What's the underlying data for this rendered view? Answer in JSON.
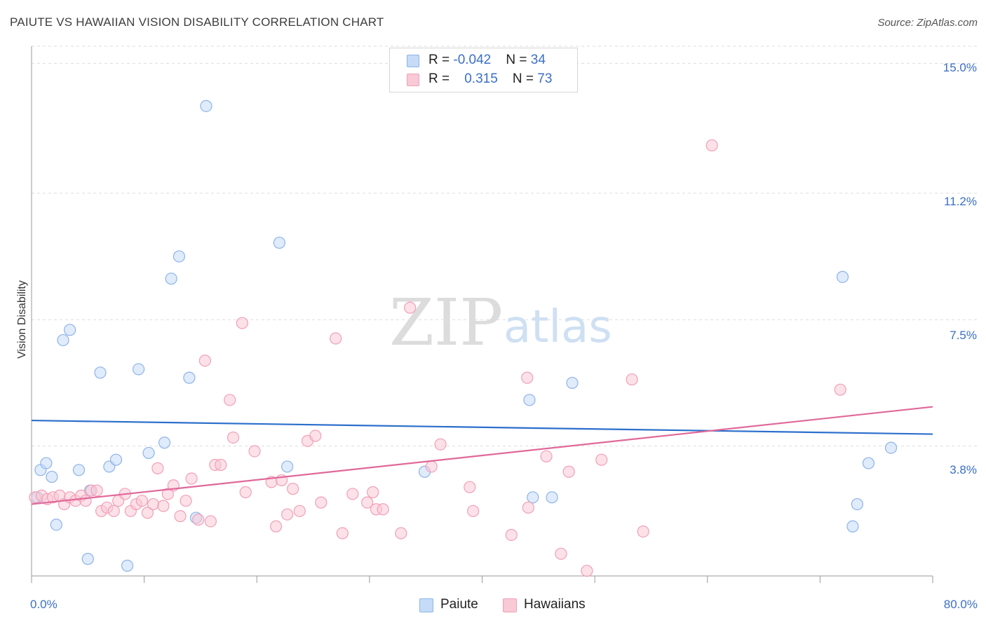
{
  "chart_data": {
    "type": "scatter",
    "title": "PAIUTE VS HAWAIIAN VISION DISABILITY CORRELATION CHART",
    "source": "Source: ZipAtlas.com",
    "watermark": "ZIPatlas",
    "xlabel": "",
    "ylabel": "Vision Disability",
    "xlim": [
      0,
      80
    ],
    "ylim": [
      0,
      15.5
    ],
    "x_tick_labels": [
      "0.0%",
      "80.0%"
    ],
    "y_ticks": [
      {
        "value": 15.0,
        "label": "15.0%"
      },
      {
        "value": 11.2,
        "label": "11.2%"
      },
      {
        "value": 7.5,
        "label": "7.5%"
      },
      {
        "value": 3.8,
        "label": "3.8%"
      }
    ],
    "series": [
      {
        "name": "Paiute",
        "color": "#8db4e8",
        "fill": "#c6dbf7",
        "line_color": "#2c6fcc",
        "r": "-0.042",
        "n": "34",
        "trend": {
          "x0": 0,
          "y0": 4.55,
          "x1": 80,
          "y1": 4.15
        },
        "points": [
          {
            "x": 0.5,
            "y": 2.3
          },
          {
            "x": 0.8,
            "y": 3.1
          },
          {
            "x": 1.3,
            "y": 3.3
          },
          {
            "x": 1.8,
            "y": 2.9
          },
          {
            "x": 2.2,
            "y": 1.5
          },
          {
            "x": 2.8,
            "y": 6.9
          },
          {
            "x": 3.4,
            "y": 7.2
          },
          {
            "x": 4.2,
            "y": 3.1
          },
          {
            "x": 5.2,
            "y": 2.5
          },
          {
            "x": 6.1,
            "y": 5.95
          },
          {
            "x": 6.9,
            "y": 3.2
          },
          {
            "x": 7.5,
            "y": 3.4
          },
          {
            "x": 9.5,
            "y": 6.05
          },
          {
            "x": 10.4,
            "y": 3.6
          },
          {
            "x": 11.8,
            "y": 3.9
          },
          {
            "x": 12.4,
            "y": 8.7
          },
          {
            "x": 13.1,
            "y": 9.35
          },
          {
            "x": 14.0,
            "y": 5.8
          },
          {
            "x": 14.6,
            "y": 1.7
          },
          {
            "x": 15.5,
            "y": 13.75
          },
          {
            "x": 22.0,
            "y": 9.75
          },
          {
            "x": 22.7,
            "y": 3.2
          },
          {
            "x": 34.9,
            "y": 3.05
          },
          {
            "x": 44.2,
            "y": 5.15
          },
          {
            "x": 44.5,
            "y": 2.3
          },
          {
            "x": 46.2,
            "y": 2.3
          },
          {
            "x": 48.0,
            "y": 5.65
          },
          {
            "x": 72.0,
            "y": 8.75
          },
          {
            "x": 73.3,
            "y": 2.1
          },
          {
            "x": 74.3,
            "y": 3.3
          },
          {
            "x": 76.3,
            "y": 3.75
          },
          {
            "x": 72.9,
            "y": 1.45
          },
          {
            "x": 5.0,
            "y": 0.5
          },
          {
            "x": 8.5,
            "y": 0.3
          }
        ]
      },
      {
        "name": "Hawaiians",
        "color": "#f0a0b8",
        "fill": "#f9c9d6",
        "line_color": "#e0689a",
        "r": "0.315",
        "n": "73",
        "trend": {
          "x0": 0,
          "y0": 2.1,
          "x1": 80,
          "y1": 4.95
        },
        "points": [
          {
            "x": 0.3,
            "y": 2.3
          },
          {
            "x": 0.9,
            "y": 2.35
          },
          {
            "x": 1.4,
            "y": 2.25
          },
          {
            "x": 1.9,
            "y": 2.3
          },
          {
            "x": 2.5,
            "y": 2.35
          },
          {
            "x": 2.9,
            "y": 2.1
          },
          {
            "x": 3.4,
            "y": 2.3
          },
          {
            "x": 3.9,
            "y": 2.2
          },
          {
            "x": 4.4,
            "y": 2.35
          },
          {
            "x": 4.8,
            "y": 2.2
          },
          {
            "x": 5.3,
            "y": 2.5
          },
          {
            "x": 5.8,
            "y": 2.5
          },
          {
            "x": 6.2,
            "y": 1.9
          },
          {
            "x": 6.7,
            "y": 2.0
          },
          {
            "x": 7.3,
            "y": 1.9
          },
          {
            "x": 7.7,
            "y": 2.2
          },
          {
            "x": 8.3,
            "y": 2.4
          },
          {
            "x": 8.8,
            "y": 1.9
          },
          {
            "x": 9.3,
            "y": 2.1
          },
          {
            "x": 9.8,
            "y": 2.2
          },
          {
            "x": 10.3,
            "y": 1.85
          },
          {
            "x": 10.8,
            "y": 2.1
          },
          {
            "x": 11.2,
            "y": 3.15
          },
          {
            "x": 11.7,
            "y": 2.05
          },
          {
            "x": 12.1,
            "y": 2.4
          },
          {
            "x": 12.6,
            "y": 2.65
          },
          {
            "x": 13.2,
            "y": 1.75
          },
          {
            "x": 13.7,
            "y": 2.2
          },
          {
            "x": 14.2,
            "y": 2.85
          },
          {
            "x": 14.8,
            "y": 1.65
          },
          {
            "x": 15.4,
            "y": 6.3
          },
          {
            "x": 15.9,
            "y": 1.6
          },
          {
            "x": 16.3,
            "y": 3.25
          },
          {
            "x": 16.8,
            "y": 3.25
          },
          {
            "x": 17.6,
            "y": 5.15
          },
          {
            "x": 17.9,
            "y": 4.05
          },
          {
            "x": 18.7,
            "y": 7.4
          },
          {
            "x": 19.0,
            "y": 2.45
          },
          {
            "x": 19.8,
            "y": 3.65
          },
          {
            "x": 21.3,
            "y": 2.75
          },
          {
            "x": 21.7,
            "y": 1.45
          },
          {
            "x": 22.2,
            "y": 2.8
          },
          {
            "x": 22.7,
            "y": 1.8
          },
          {
            "x": 23.2,
            "y": 2.55
          },
          {
            "x": 23.8,
            "y": 1.9
          },
          {
            "x": 24.5,
            "y": 3.95
          },
          {
            "x": 25.2,
            "y": 4.1
          },
          {
            "x": 25.7,
            "y": 2.15
          },
          {
            "x": 27.0,
            "y": 6.95
          },
          {
            "x": 27.6,
            "y": 1.25
          },
          {
            "x": 28.5,
            "y": 2.4
          },
          {
            "x": 29.8,
            "y": 2.15
          },
          {
            "x": 30.3,
            "y": 2.45
          },
          {
            "x": 30.6,
            "y": 1.95
          },
          {
            "x": 31.2,
            "y": 1.95
          },
          {
            "x": 32.8,
            "y": 1.25
          },
          {
            "x": 33.6,
            "y": 7.85
          },
          {
            "x": 35.5,
            "y": 3.2
          },
          {
            "x": 36.3,
            "y": 3.85
          },
          {
            "x": 38.9,
            "y": 2.6
          },
          {
            "x": 39.2,
            "y": 1.9
          },
          {
            "x": 42.6,
            "y": 1.2
          },
          {
            "x": 44.0,
            "y": 5.8
          },
          {
            "x": 44.1,
            "y": 2.0
          },
          {
            "x": 45.7,
            "y": 3.5
          },
          {
            "x": 47.0,
            "y": 0.65
          },
          {
            "x": 47.7,
            "y": 3.05
          },
          {
            "x": 49.3,
            "y": 0.15
          },
          {
            "x": 50.6,
            "y": 3.4
          },
          {
            "x": 53.3,
            "y": 5.75
          },
          {
            "x": 54.3,
            "y": 1.3
          },
          {
            "x": 60.4,
            "y": 12.6
          },
          {
            "x": 71.8,
            "y": 5.45
          }
        ]
      }
    ]
  }
}
